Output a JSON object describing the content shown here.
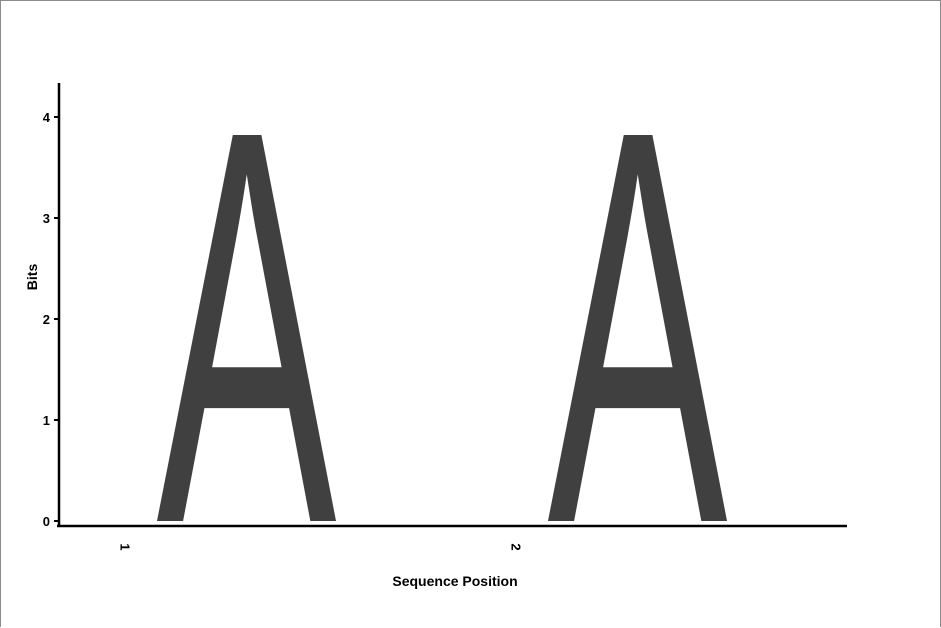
{
  "chart_data": {
    "type": "sequence-logo",
    "title": "",
    "xlabel": "Sequence Position",
    "ylabel": "Bits",
    "ylim": [
      0,
      4
    ],
    "yticks": [
      "0",
      "1",
      "2",
      "3",
      "4"
    ],
    "positions": [
      {
        "label": "1",
        "letters": [
          {
            "char": "A",
            "bits": 4,
            "color": "#404040"
          }
        ]
      },
      {
        "label": "2",
        "letters": [
          {
            "char": "A",
            "bits": 4,
            "color": "#404040"
          }
        ]
      }
    ]
  }
}
